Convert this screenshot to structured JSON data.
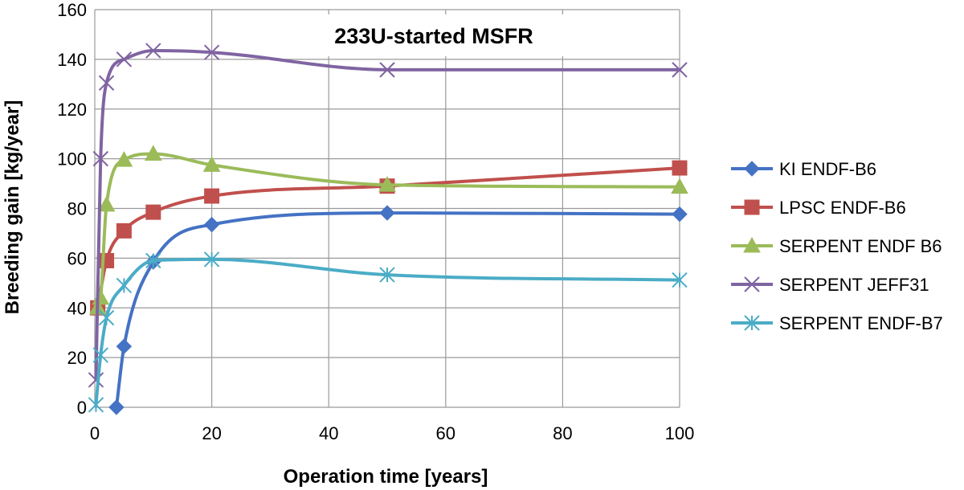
{
  "chart_data": {
    "type": "line",
    "title": "233U-started MSFR",
    "xlabel": "Operation time [years]",
    "ylabel": "Breeding gain [kg/year]",
    "xlim": [
      0,
      100
    ],
    "ylim": [
      0,
      160
    ],
    "xticks": [
      0,
      20,
      40,
      60,
      80,
      100
    ],
    "yticks": [
      0,
      20,
      40,
      60,
      80,
      100,
      120,
      140,
      160
    ],
    "xgrid": true,
    "ygrid": true,
    "legend_position": "right",
    "series": [
      {
        "name": "KI ENDF-B6",
        "color": "#4472C4",
        "marker": "diamond",
        "x": [
          3.7,
          5,
          10,
          20,
          50,
          100
        ],
        "y": [
          0,
          24.5,
          58.5,
          73.5,
          78.2,
          77.7
        ]
      },
      {
        "name": "LPSC ENDF-B6",
        "color": "#C0504D",
        "marker": "square",
        "x": [
          0.5,
          2,
          5,
          10,
          20,
          50,
          100
        ],
        "y": [
          40,
          59,
          71,
          78.5,
          85,
          89,
          96.3
        ]
      },
      {
        "name": "SERPENT ENDF B6",
        "color": "#9BBB59",
        "marker": "triangle",
        "x": [
          0.5,
          1,
          2,
          5,
          10,
          20,
          50,
          100
        ],
        "y": [
          40,
          44,
          81.5,
          99.5,
          102,
          97.5,
          89.5,
          88.7
        ]
      },
      {
        "name": "SERPENT JEFF31",
        "color": "#8064A2",
        "marker": "x",
        "x": [
          0.2,
          1,
          2,
          5,
          10,
          20,
          50,
          100
        ],
        "y": [
          11,
          100,
          130.5,
          140,
          143.5,
          142.8,
          135.8,
          135.8
        ]
      },
      {
        "name": "SERPENT ENDF-B7",
        "color": "#4BACC6",
        "marker": "asterisk",
        "x": [
          0.2,
          1,
          2,
          5,
          10,
          20,
          50,
          100
        ],
        "y": [
          1,
          21,
          36,
          49,
          59,
          59.5,
          53.3,
          51.2
        ]
      }
    ]
  }
}
